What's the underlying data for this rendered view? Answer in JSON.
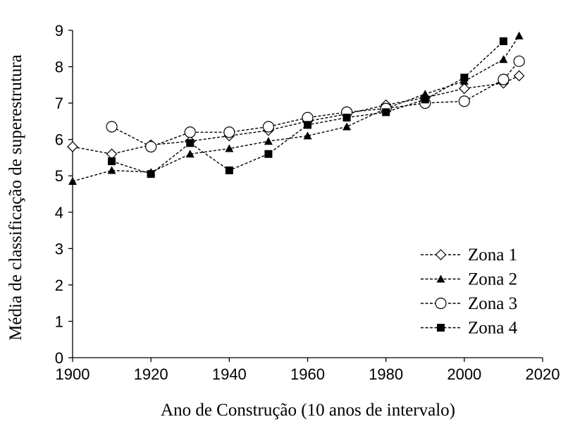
{
  "chart_data": {
    "type": "line",
    "xlabel": "Ano de Construção (10 anos de intervalo)",
    "ylabel": "Média de classificação de superestrutura",
    "xlim": [
      1900,
      2020
    ],
    "ylim": [
      0,
      9
    ],
    "xticks": [
      1900,
      1920,
      1940,
      1960,
      1980,
      2000,
      2020
    ],
    "yticks": [
      0,
      1,
      2,
      3,
      4,
      5,
      6,
      7,
      8,
      9
    ],
    "grid": false,
    "legend_position": "bottom-right",
    "series": [
      {
        "name": "Zona 1",
        "marker": "diamond-open",
        "x": [
          1900,
          1910,
          1920,
          1930,
          1940,
          1950,
          1960,
          1970,
          1980,
          1990,
          2000,
          2010,
          2014
        ],
        "y": [
          5.8,
          5.6,
          5.85,
          5.95,
          6.1,
          6.25,
          6.5,
          6.7,
          6.95,
          7.15,
          7.4,
          7.55,
          7.75
        ]
      },
      {
        "name": "Zona 2",
        "marker": "triangle-filled",
        "x": [
          1900,
          1910,
          1920,
          1930,
          1940,
          1950,
          1960,
          1970,
          1980,
          1990,
          2000,
          2010,
          2014
        ],
        "y": [
          4.85,
          5.15,
          5.1,
          5.6,
          5.75,
          5.95,
          6.1,
          6.35,
          6.85,
          7.25,
          7.6,
          8.2,
          8.85
        ]
      },
      {
        "name": "Zona 3",
        "marker": "circle-open",
        "x": [
          1910,
          1920,
          1930,
          1940,
          1950,
          1960,
          1970,
          1980,
          1990,
          2000,
          2010,
          2014
        ],
        "y": [
          6.35,
          5.8,
          6.2,
          6.2,
          6.35,
          6.6,
          6.75,
          6.85,
          7.0,
          7.05,
          7.65,
          8.15
        ]
      },
      {
        "name": "Zona 4",
        "marker": "square-filled",
        "x": [
          1910,
          1920,
          1930,
          1940,
          1950,
          1960,
          1970,
          1980,
          1990,
          2000,
          2010
        ],
        "y": [
          5.4,
          5.05,
          5.9,
          5.15,
          5.6,
          6.4,
          6.6,
          6.75,
          7.1,
          7.7,
          8.7
        ]
      }
    ]
  }
}
